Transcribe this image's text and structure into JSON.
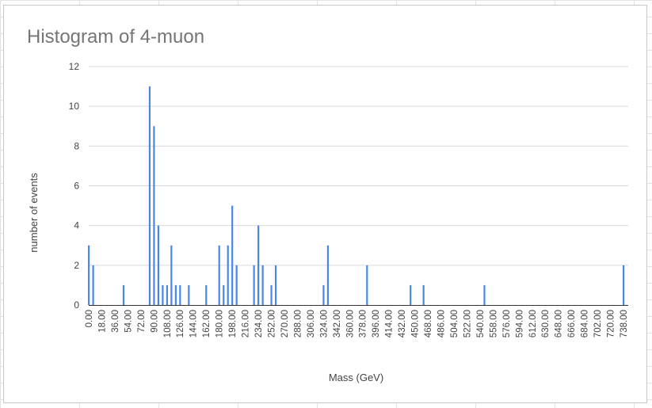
{
  "chart_data": {
    "type": "bar",
    "title": "Histogram of 4-muon",
    "xlabel": "Mass (GeV)",
    "ylabel": "number of events",
    "ylim": [
      0,
      12
    ],
    "yticks": [
      "0",
      "2",
      "4",
      "6",
      "8",
      "10",
      "12"
    ],
    "xlim": [
      0,
      738
    ],
    "xticks": [
      "0.00",
      "18.00",
      "36.00",
      "54.00",
      "72.00",
      "90.00",
      "108.00",
      "126.00",
      "144.00",
      "162.00",
      "180.00",
      "198.00",
      "216.00",
      "234.00",
      "252.00",
      "270.00",
      "288.00",
      "306.00",
      "324.00",
      "342.00",
      "360.00",
      "378.00",
      "396.00",
      "414.00",
      "432.00",
      "450.00",
      "468.00",
      "486.00",
      "504.00",
      "522.00",
      "540.00",
      "558.00",
      "576.00",
      "594.00",
      "612.00",
      "630.00",
      "648.00",
      "666.00",
      "684.00",
      "702.00",
      "720.00",
      "738.00"
    ],
    "bars": [
      {
        "x": 0,
        "y": 3
      },
      {
        "x": 6,
        "y": 2
      },
      {
        "x": 48,
        "y": 1
      },
      {
        "x": 84,
        "y": 11
      },
      {
        "x": 90,
        "y": 9
      },
      {
        "x": 96,
        "y": 4
      },
      {
        "x": 102,
        "y": 1
      },
      {
        "x": 108,
        "y": 1
      },
      {
        "x": 114,
        "y": 3
      },
      {
        "x": 120,
        "y": 1
      },
      {
        "x": 126,
        "y": 1
      },
      {
        "x": 138,
        "y": 1
      },
      {
        "x": 162,
        "y": 1
      },
      {
        "x": 180,
        "y": 3
      },
      {
        "x": 186,
        "y": 1
      },
      {
        "x": 192,
        "y": 3
      },
      {
        "x": 198,
        "y": 5
      },
      {
        "x": 204,
        "y": 2
      },
      {
        "x": 228,
        "y": 2
      },
      {
        "x": 234,
        "y": 4
      },
      {
        "x": 240,
        "y": 2
      },
      {
        "x": 252,
        "y": 1
      },
      {
        "x": 258,
        "y": 2
      },
      {
        "x": 324,
        "y": 1
      },
      {
        "x": 330,
        "y": 3
      },
      {
        "x": 384,
        "y": 2
      },
      {
        "x": 444,
        "y": 1
      },
      {
        "x": 462,
        "y": 1
      },
      {
        "x": 546,
        "y": 1
      },
      {
        "x": 738,
        "y": 2
      }
    ],
    "grid": true,
    "bar_color": "#4a86e8",
    "grid_color": "#d9d9d9",
    "legend": "none"
  }
}
